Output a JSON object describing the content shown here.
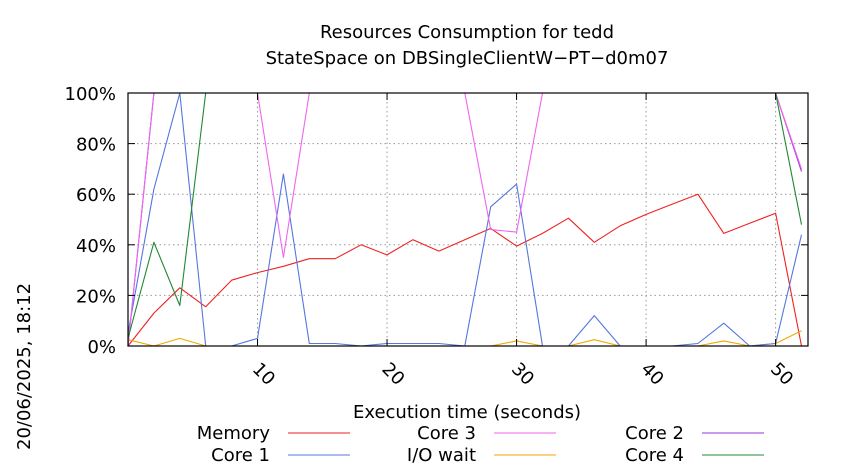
{
  "chart_data": {
    "type": "line",
    "title_line1": "Resources Consumption for tedd",
    "title_line2": "StateSpace on DBSingleClientW−PT−d0m07",
    "xlabel": "Execution time (seconds)",
    "ylabel": "",
    "side_label": "20/06/2025, 18:12",
    "xlim": [
      0,
      52.5
    ],
    "ylim": [
      0,
      100
    ],
    "x_ticks": [
      10,
      20,
      30,
      40,
      50
    ],
    "x_tick_labels": [
      "10",
      "20",
      "30",
      "40",
      "50"
    ],
    "y_ticks": [
      0,
      20,
      40,
      60,
      80,
      100
    ],
    "y_tick_labels": [
      "0%",
      "20%",
      "40%",
      "60%",
      "80%",
      "100%"
    ],
    "grid": true,
    "legend_position": "bottom",
    "series": [
      {
        "name": "Memory",
        "color": "#ee2222",
        "points": [
          [
            0,
            0
          ],
          [
            2,
            13
          ],
          [
            4,
            23
          ],
          [
            6,
            15.5
          ],
          [
            8,
            26
          ],
          [
            10,
            29
          ],
          [
            12,
            31.5
          ],
          [
            14,
            34.5
          ],
          [
            16,
            34.5
          ],
          [
            18,
            40
          ],
          [
            20,
            36
          ],
          [
            22,
            42
          ],
          [
            24,
            37.5
          ],
          [
            26,
            42
          ],
          [
            28,
            46.5
          ],
          [
            30,
            39.5
          ],
          [
            32,
            44.5
          ],
          [
            34,
            50.5
          ],
          [
            36,
            41
          ],
          [
            38,
            47.5
          ],
          [
            40,
            52
          ],
          [
            42,
            56
          ],
          [
            44,
            60
          ],
          [
            46,
            44.5
          ],
          [
            48,
            48.5
          ],
          [
            50,
            52.5
          ],
          [
            52,
            0
          ]
        ]
      },
      {
        "name": "I/O wait",
        "color": "#f0a800",
        "points": [
          [
            0,
            2.5
          ],
          [
            2,
            0
          ],
          [
            4,
            3
          ],
          [
            6,
            0
          ],
          [
            8,
            0
          ],
          [
            10,
            0
          ],
          [
            12,
            0
          ],
          [
            14,
            0
          ],
          [
            16,
            0
          ],
          [
            18,
            0
          ],
          [
            20,
            0
          ],
          [
            22,
            0
          ],
          [
            24,
            0
          ],
          [
            26,
            0
          ],
          [
            28,
            0
          ],
          [
            30,
            2
          ],
          [
            32,
            0
          ],
          [
            34,
            0
          ],
          [
            36,
            2.5
          ],
          [
            38,
            0
          ],
          [
            40,
            0
          ],
          [
            42,
            0
          ],
          [
            44,
            0
          ],
          [
            46,
            2
          ],
          [
            48,
            0
          ],
          [
            50,
            1
          ],
          [
            52,
            6
          ]
        ]
      },
      {
        "name": "Core 1",
        "color": "#5577dd",
        "points": [
          [
            0,
            5
          ],
          [
            2,
            62
          ],
          [
            4,
            100
          ],
          [
            6,
            0
          ],
          [
            8,
            0
          ],
          [
            10,
            3
          ],
          [
            12,
            68
          ],
          [
            14,
            1
          ],
          [
            16,
            1
          ],
          [
            18,
            0
          ],
          [
            20,
            1
          ],
          [
            22,
            1
          ],
          [
            24,
            1
          ],
          [
            26,
            0
          ],
          [
            28,
            55
          ],
          [
            30,
            64
          ],
          [
            32,
            0
          ],
          [
            34,
            0
          ],
          [
            36,
            12
          ],
          [
            38,
            0
          ],
          [
            40,
            0
          ],
          [
            42,
            0
          ],
          [
            44,
            1
          ],
          [
            46,
            9
          ],
          [
            48,
            0
          ],
          [
            50,
            1
          ],
          [
            52,
            44
          ]
        ]
      },
      {
        "name": "Core 2",
        "color": "#9933dd",
        "points": [
          [
            0,
            0
          ],
          [
            2,
            100
          ],
          [
            4,
            100
          ],
          [
            6,
            100
          ],
          [
            8,
            100
          ],
          [
            10,
            100
          ],
          [
            12,
            100
          ],
          [
            14,
            100
          ],
          [
            16,
            100
          ],
          [
            18,
            100
          ],
          [
            20,
            100
          ],
          [
            22,
            100
          ],
          [
            24,
            100
          ],
          [
            26,
            100
          ],
          [
            28,
            100
          ],
          [
            30,
            100
          ],
          [
            32,
            100
          ],
          [
            34,
            100
          ],
          [
            36,
            100
          ],
          [
            38,
            100
          ],
          [
            40,
            100
          ],
          [
            42,
            100
          ],
          [
            44,
            100
          ],
          [
            46,
            100
          ],
          [
            48,
            100
          ],
          [
            50,
            100
          ],
          [
            52,
            69
          ]
        ]
      },
      {
        "name": "Core 3",
        "color": "#ee66ee",
        "points": [
          [
            0,
            0
          ],
          [
            2,
            100
          ],
          [
            4,
            100
          ],
          [
            6,
            100
          ],
          [
            8,
            100
          ],
          [
            10,
            100
          ],
          [
            12,
            35
          ],
          [
            14,
            100
          ],
          [
            16,
            100
          ],
          [
            18,
            100
          ],
          [
            20,
            100
          ],
          [
            22,
            100
          ],
          [
            24,
            100
          ],
          [
            26,
            100
          ],
          [
            28,
            46
          ],
          [
            30,
            45
          ],
          [
            32,
            100
          ],
          [
            34,
            100
          ],
          [
            36,
            100
          ],
          [
            38,
            100
          ],
          [
            40,
            100
          ],
          [
            42,
            100
          ],
          [
            44,
            100
          ],
          [
            46,
            100
          ],
          [
            48,
            100
          ],
          [
            50,
            100
          ],
          [
            52,
            70
          ]
        ]
      },
      {
        "name": "Core 4",
        "color": "#228833",
        "points": [
          [
            0,
            3
          ],
          [
            2,
            41
          ],
          [
            4,
            16
          ],
          [
            6,
            100
          ],
          [
            8,
            100
          ],
          [
            10,
            100
          ],
          [
            12,
            100
          ],
          [
            14,
            100
          ],
          [
            16,
            100
          ],
          [
            18,
            100
          ],
          [
            20,
            100
          ],
          [
            22,
            100
          ],
          [
            24,
            100
          ],
          [
            26,
            100
          ],
          [
            28,
            100
          ],
          [
            30,
            100
          ],
          [
            32,
            100
          ],
          [
            34,
            100
          ],
          [
            36,
            100
          ],
          [
            38,
            100
          ],
          [
            40,
            100
          ],
          [
            42,
            100
          ],
          [
            44,
            100
          ],
          [
            46,
            100
          ],
          [
            48,
            100
          ],
          [
            50,
            100
          ],
          [
            52,
            48
          ]
        ]
      }
    ],
    "legend_order": [
      0,
      2,
      4,
      1,
      3,
      5
    ]
  }
}
